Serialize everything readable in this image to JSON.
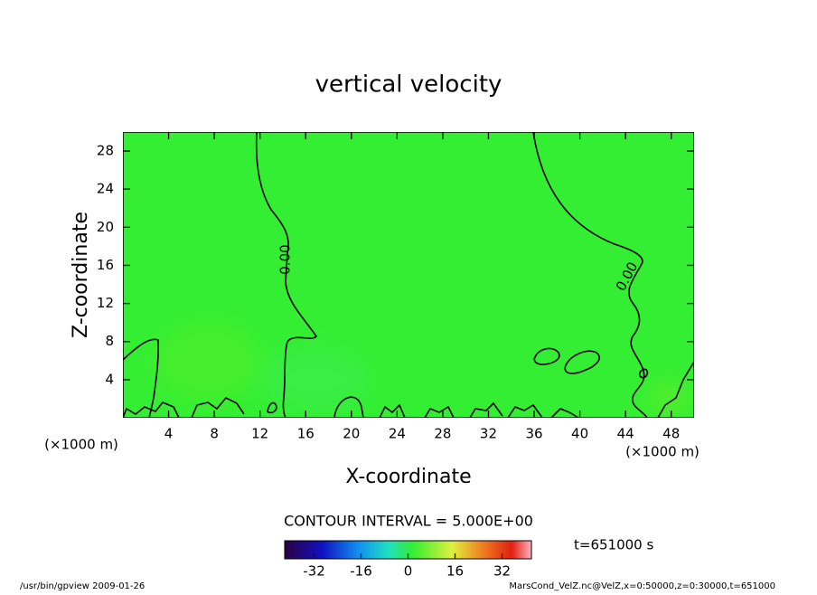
{
  "chart_data": {
    "type": "contour",
    "title": "vertical velocity",
    "x_label": "X-coordinate",
    "y_label": "Z-coordinate",
    "x_unit": "(×1000 m)",
    "y_unit": "(×1000 m)",
    "xlim": [
      0,
      50
    ],
    "xticks": [
      4,
      8,
      12,
      16,
      20,
      24,
      28,
      32,
      36,
      40,
      44,
      48
    ],
    "ylim": [
      0,
      30
    ],
    "yticks": [
      4,
      8,
      12,
      16,
      20,
      24,
      28
    ],
    "field_color": "#33ee33",
    "contour_levels": [
      {
        "value": 0,
        "label": "0.00"
      }
    ],
    "contour_interval": "CONTOUR INTERVAL = 5.000E+00",
    "time_label": "t=651000 s",
    "colorbar": {
      "lim": [
        -42,
        42
      ],
      "ticks": [
        -32,
        -16,
        0,
        16,
        32
      ]
    },
    "footer_left": "/usr/bin/gpview  2009-01-26",
    "footer_right": "MarsCond_VelZ.nc@VelZ,x=0:50000,z=0:30000,t=651000"
  }
}
